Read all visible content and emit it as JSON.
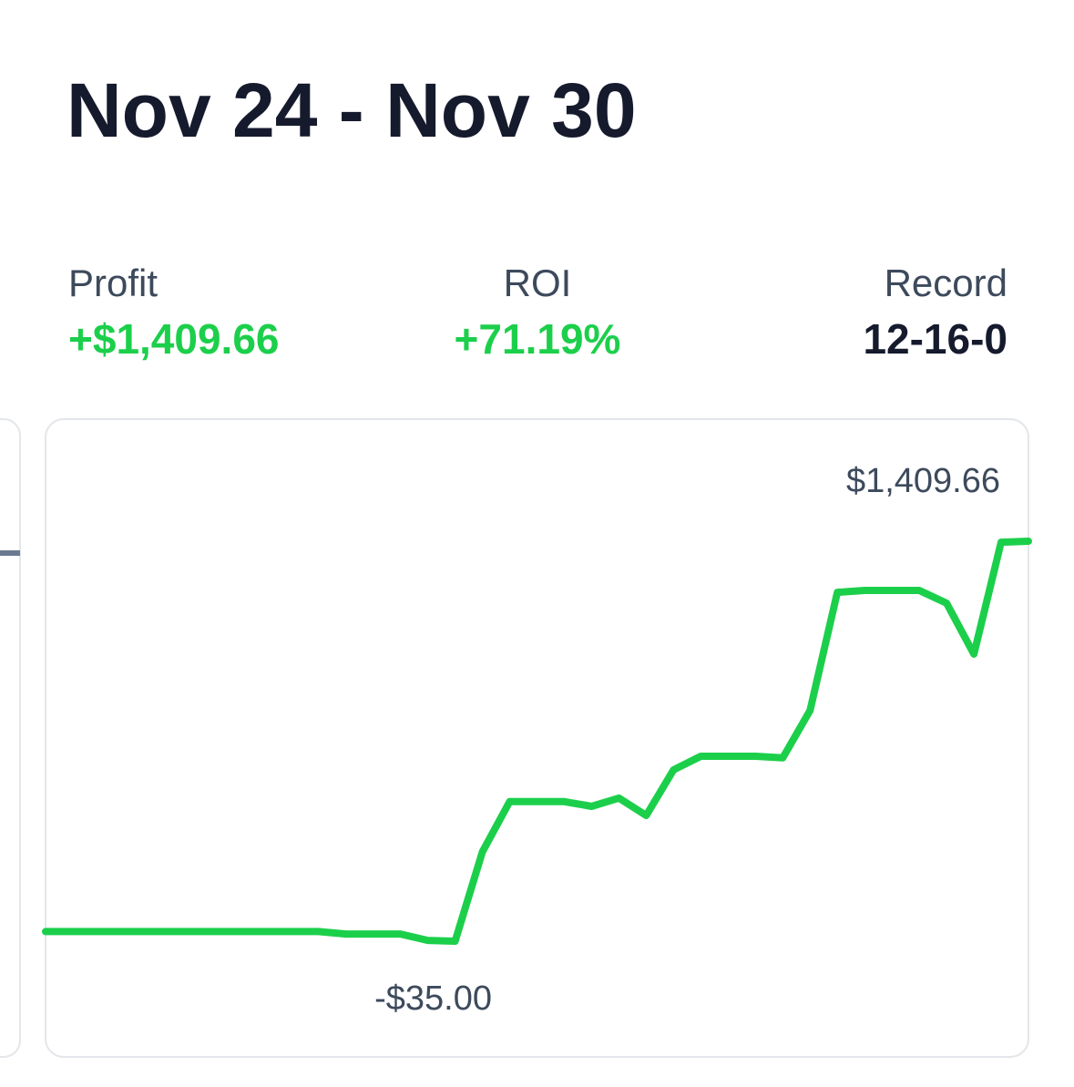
{
  "header": {
    "title": "Nov 24 - Nov 30"
  },
  "stats": [
    {
      "label": "Profit",
      "value": "+$1,409.66"
    },
    {
      "label": "ROI",
      "value": "+71.19%"
    },
    {
      "label": "Record",
      "value": "12-16-0"
    }
  ],
  "chart_data": {
    "type": "line",
    "color": "#1ccf4b",
    "values": [
      0,
      0,
      0,
      0,
      0,
      0,
      0,
      0,
      0,
      0,
      0,
      -9,
      -9,
      -9,
      -32,
      -35,
      288,
      469,
      469,
      469,
      452,
      482,
      419,
      584,
      633,
      633,
      633,
      627,
      798,
      1225,
      1232,
      1232,
      1232,
      1186,
      1002,
      1406,
      1409.66
    ],
    "max_label": "$1,409.66",
    "min_label": "-$35.00"
  }
}
